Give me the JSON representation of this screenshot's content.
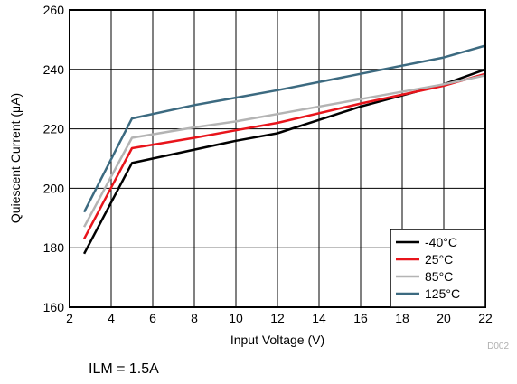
{
  "chart_data": {
    "type": "line",
    "title": "",
    "xlabel": "Input Voltage (V)",
    "ylabel": "Quiescent Current (μA)",
    "xlim": [
      2,
      22
    ],
    "ylim": [
      160,
      260
    ],
    "x_ticks": [
      2,
      4,
      6,
      8,
      10,
      12,
      14,
      16,
      18,
      20,
      22
    ],
    "y_ticks": [
      160,
      180,
      200,
      220,
      240,
      260
    ],
    "grid": true,
    "legend_position": "bottom-right",
    "series": [
      {
        "name": "-40°C",
        "color": "#000000",
        "x": [
          2.7,
          5,
          8,
          10,
          12,
          16,
          20,
          22
        ],
        "y": [
          178,
          208.5,
          213,
          216,
          218.5,
          227.5,
          235,
          240
        ]
      },
      {
        "name": "25°C",
        "color": "#e8141b",
        "x": [
          2.7,
          5,
          8,
          10,
          12,
          16,
          20,
          22
        ],
        "y": [
          183,
          213.5,
          217,
          219.5,
          222,
          228.5,
          234.5,
          238.5
        ]
      },
      {
        "name": "85°C",
        "color": "#b4b4b4",
        "x": [
          2.7,
          5,
          8,
          10,
          12,
          16,
          20,
          22
        ],
        "y": [
          187,
          217,
          220.5,
          222.5,
          225,
          230,
          235,
          238
        ]
      },
      {
        "name": "125°C",
        "color": "#3c6a80",
        "x": [
          2.7,
          5,
          8,
          10,
          12,
          16,
          20,
          22
        ],
        "y": [
          192,
          223.5,
          228,
          230.5,
          233,
          238.5,
          244,
          248
        ]
      }
    ]
  },
  "figure_id": "D002",
  "caption": "ILM = 1.5A"
}
